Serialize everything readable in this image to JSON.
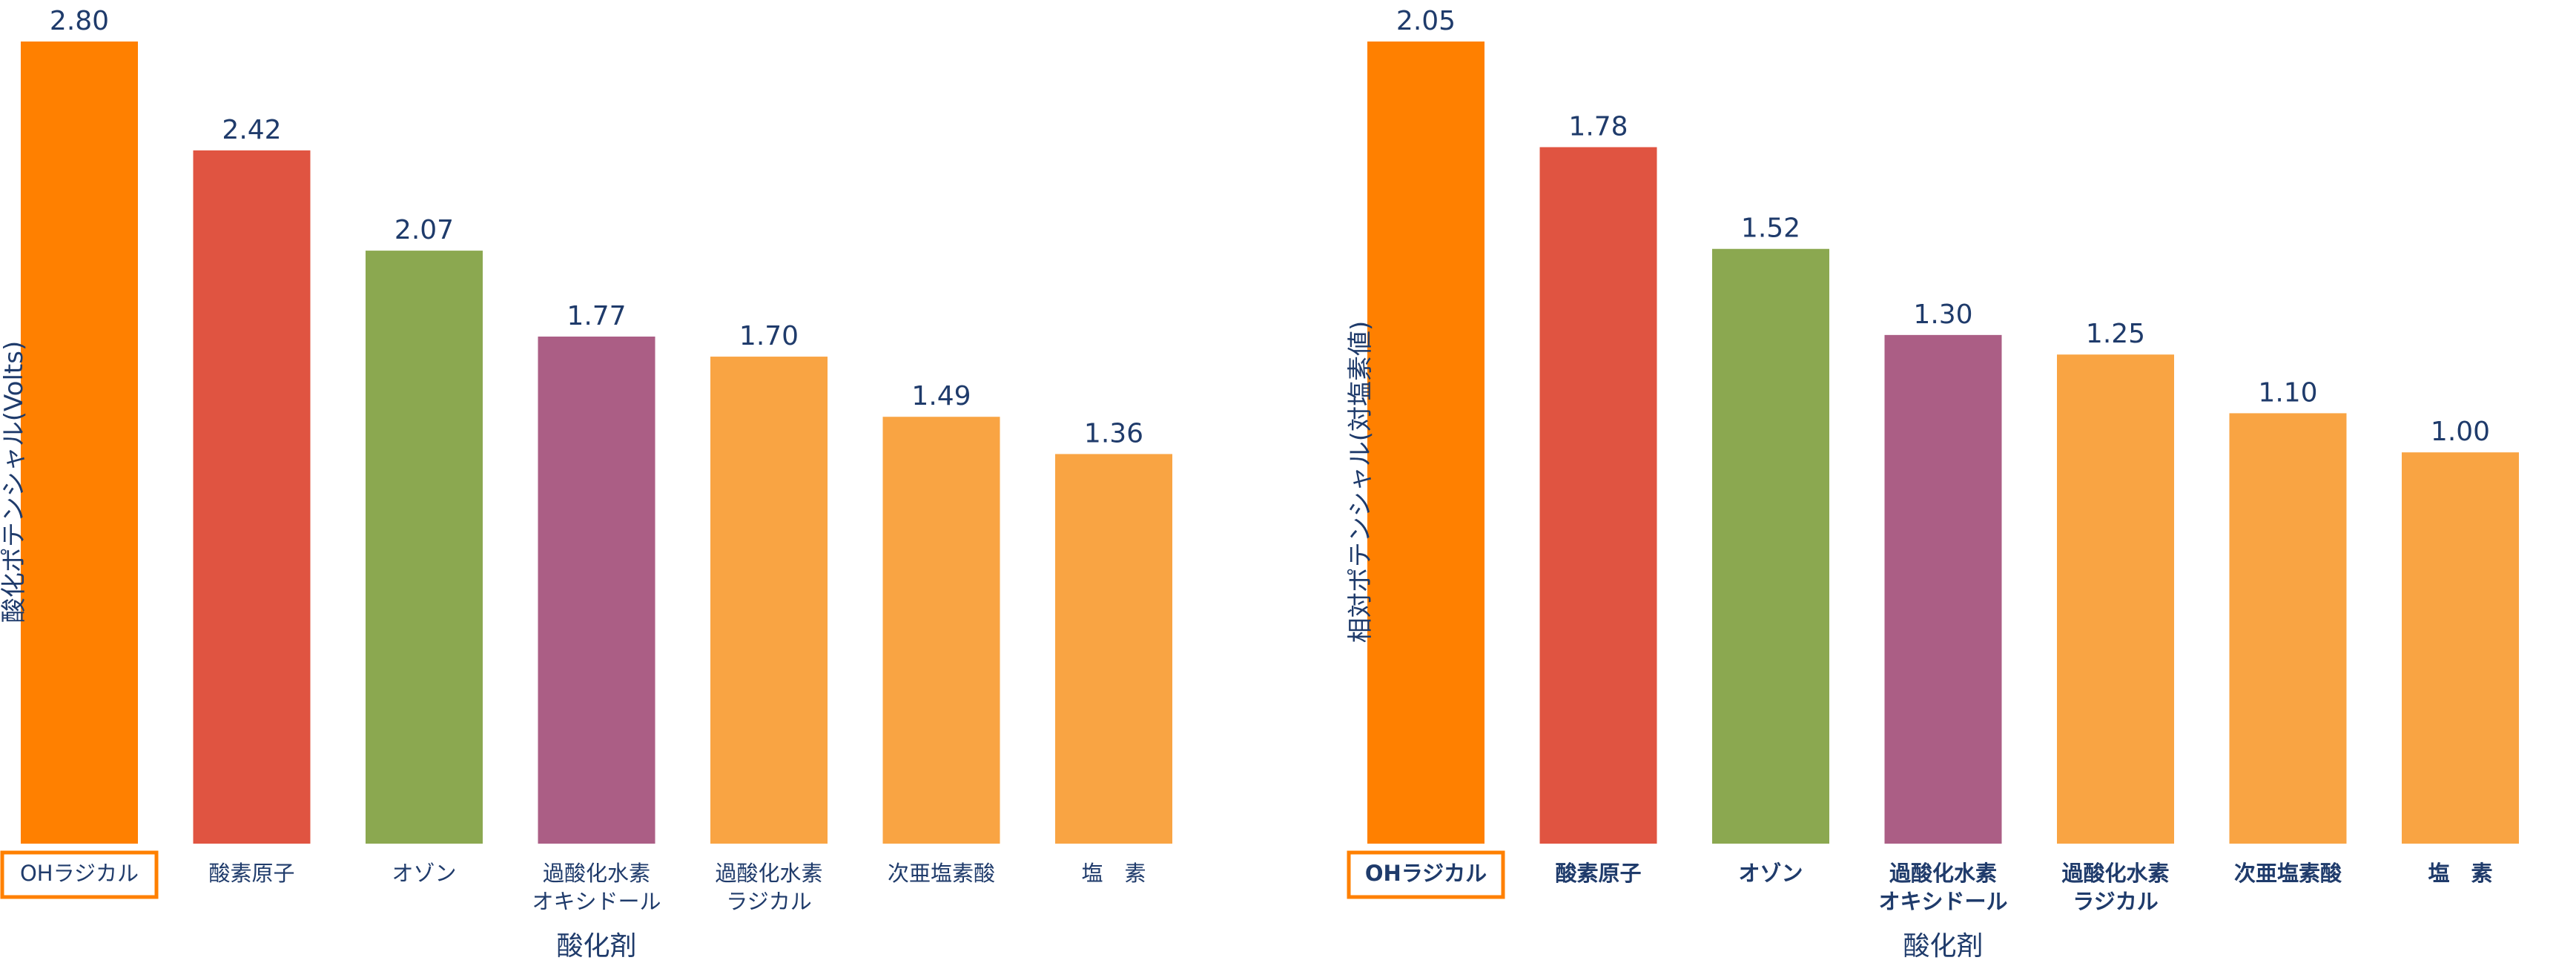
{
  "chart_data": [
    {
      "type": "bar",
      "ylabel": "酸化ポテンシャル(Volts)",
      "xlabel": "酸化剤",
      "categories": [
        [
          "OHラジカル"
        ],
        [
          "酸素原子"
        ],
        [
          "オゾン"
        ],
        [
          "過酸化水素",
          "オキシドール"
        ],
        [
          "過酸化水素",
          "ラジカル"
        ],
        [
          "次亜塩素酸"
        ],
        [
          "塩　素"
        ]
      ],
      "values": [
        2.8,
        2.42,
        2.07,
        1.77,
        1.7,
        1.49,
        1.36
      ],
      "value_labels": [
        "2.80",
        "2.42",
        "2.07",
        "1.77",
        "1.70",
        "1.49",
        "1.36"
      ],
      "colors": [
        "#FF8000",
        "#E05441",
        "#8BA850",
        "#AB5E85",
        "#F9A443",
        "#F9A443",
        "#F9A443"
      ],
      "ylim": [
        0,
        2.8
      ],
      "grid": false,
      "highlight_category": 0,
      "highlight_color": "#FF8000",
      "bold_category_labels": false
    },
    {
      "type": "bar",
      "ylabel": "相対ポテンシャル(対塩素値)",
      "xlabel": "酸化剤",
      "categories": [
        [
          "OHラジカル"
        ],
        [
          "酸素原子"
        ],
        [
          "オゾン"
        ],
        [
          "過酸化水素",
          "オキシドール"
        ],
        [
          "過酸化水素",
          "ラジカル"
        ],
        [
          "次亜塩素酸"
        ],
        [
          "塩　素"
        ]
      ],
      "values": [
        2.05,
        1.78,
        1.52,
        1.3,
        1.25,
        1.1,
        1.0
      ],
      "value_labels": [
        "2.05",
        "1.78",
        "1.52",
        "1.30",
        "1.25",
        "1.10",
        "1.00"
      ],
      "colors": [
        "#FF8000",
        "#E05441",
        "#8BA850",
        "#AB5E85",
        "#F9A443",
        "#F9A443",
        "#F9A443"
      ],
      "ylim": [
        0,
        2.05
      ],
      "grid": false,
      "highlight_category": 0,
      "highlight_color": "#FF8000",
      "bold_category_labels": true
    }
  ],
  "text_color": "#1F3B6B"
}
